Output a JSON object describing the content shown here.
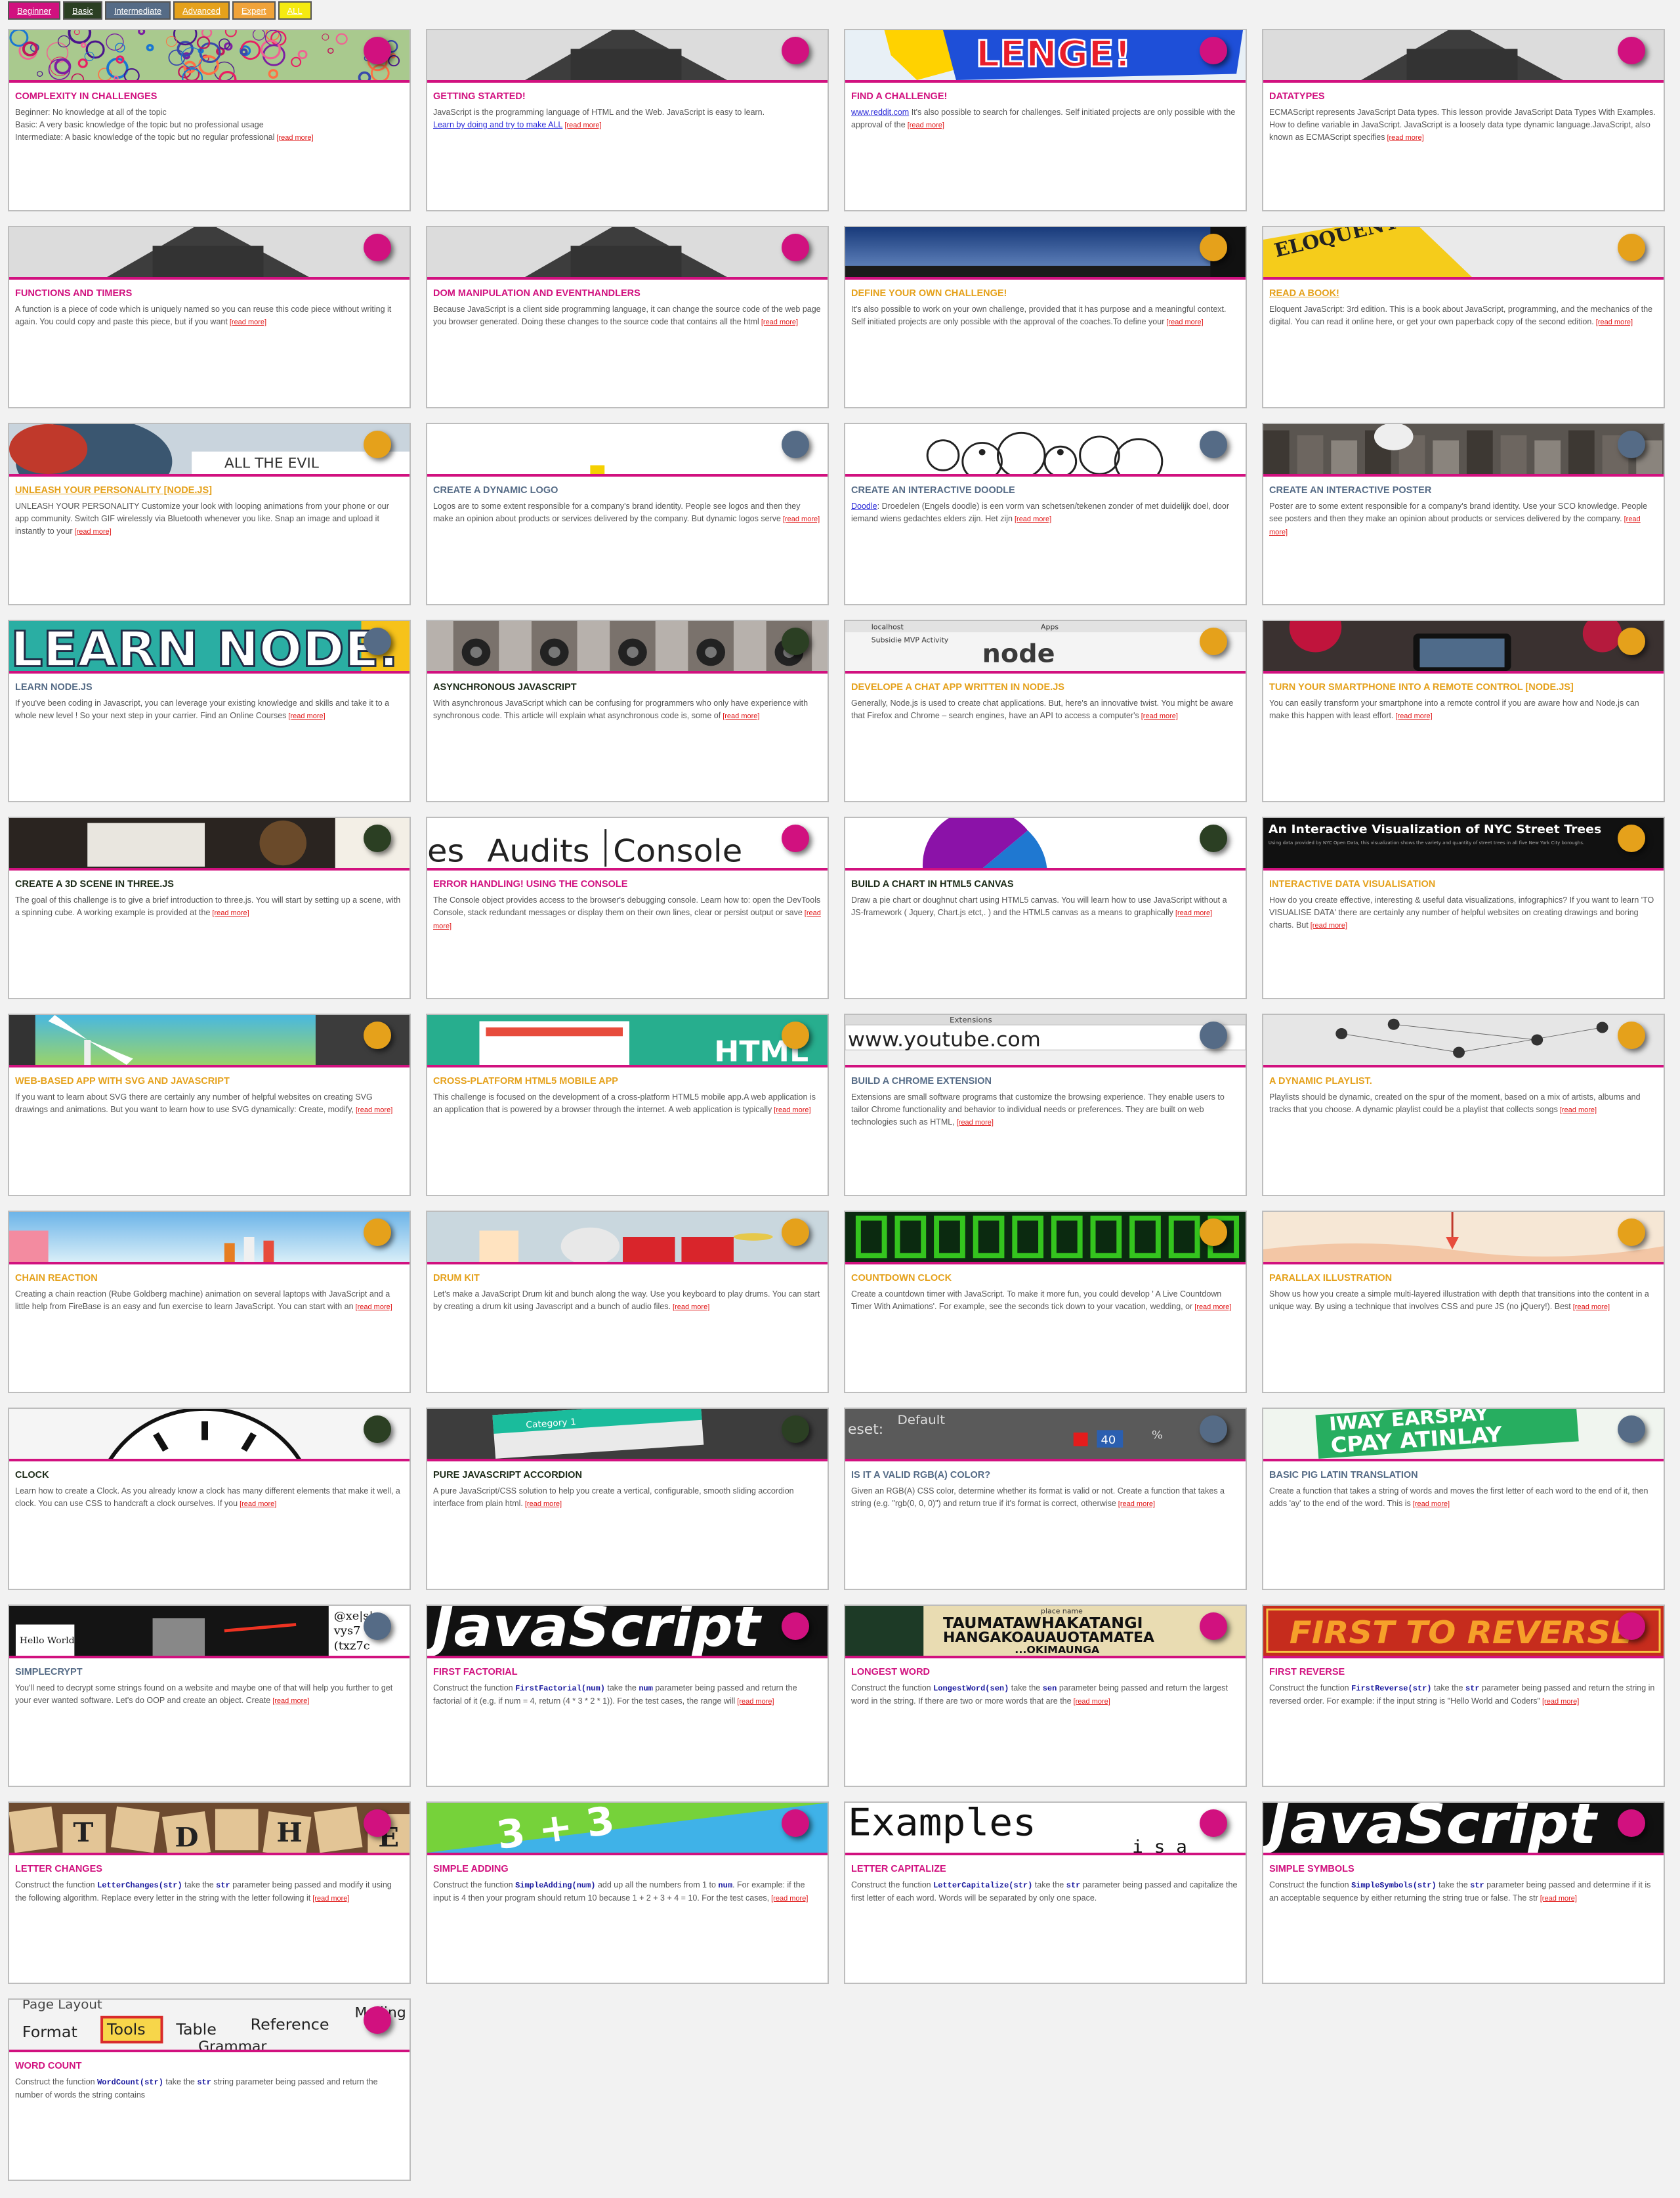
{
  "colors": {
    "beginner": "#d1117f",
    "basic": "#2b3f23",
    "intermediate": "#556b86",
    "advanced": "#e5a11b",
    "expert": "#f0a33a",
    "all": "#f5ea10"
  },
  "filters": [
    {
      "key": "beginner",
      "label": "Beginner"
    },
    {
      "key": "basic",
      "label": "Basic"
    },
    {
      "key": "intermediate",
      "label": "Intermediate"
    },
    {
      "key": "advanced",
      "label": "Advanced"
    },
    {
      "key": "expert",
      "label": "Expert"
    },
    {
      "key": "all",
      "label": "ALL"
    }
  ],
  "read_more": "[read more]",
  "cards": [
    {
      "title": "COMPLEXITY IN CHALLENGES",
      "level": "beginner",
      "img": "circles",
      "lines": [
        "Beginner: No knowledge at all of the topic",
        "Basic: A very basic knowledge of the topic but no professional usage",
        "Intermediate: A basic knowledge of the topic but no regular professional"
      ]
    },
    {
      "title": "GETTING STARTED!",
      "level": "beginner",
      "img": "gradcap",
      "text": "JavaScript is the programming language of HTML and the Web. JavaScript is easy to learn.",
      "link": "Learn by doing and try to make ALL"
    },
    {
      "title": "FIND A CHALLENGE!",
      "level": "beginner",
      "img": "comic",
      "link": "www.reddit.com",
      "text": " It's also possible to search for challenges. Self initiated projects are only possible with the approval of the"
    },
    {
      "title": "DATATYPES",
      "level": "beginner",
      "img": "gradcap",
      "text": "ECMAScript represents JavaScript Data types. This lesson provide JavaScript Data Types With Examples. How to define variable in JavaScript. JavaScript is a loosely data type dynamic language.JavaScript, also known as ECMAScript specifies"
    },
    {
      "title": "FUNCTIONS AND TIMERS",
      "level": "beginner",
      "img": "gradcap",
      "text": "A function is a piece of code which is uniquely named so you can reuse this code piece without writing it again. You could copy and paste this piece, but if you want"
    },
    {
      "title": "DOM MANIPULATION AND EVENTHANDLERS",
      "level": "beginner",
      "img": "gradcap",
      "text": "Because JavaScript is a client side programming language, it can change the source code of the web page you browser generated. Doing these changes to the source code that contains all the html"
    },
    {
      "title": "DEFINE YOUR OWN CHALLENGE!",
      "level": "advanced",
      "img": "sky",
      "text": "It's also possible to work on your own challenge, provided that it has purpose and a meaningful context. Self initiated projects are only possible with the approval of the coaches.To define your"
    },
    {
      "title": "READ A BOOK!",
      "level": "advanced",
      "img": "book",
      "underline": true,
      "text": "Eloquent JavaScript: 3rd edition. This is a book about JavaScript, programming, and the mechanics of the digital. You can read it online here, or get your own paperback copy of the second edition."
    },
    {
      "title": "UNLEASH YOUR PERSONALITY [NODE.JS]",
      "level": "advanced",
      "img": "person",
      "underline": true,
      "text": "UNLEASH YOUR PERSONALITY Customize your look with looping animations from your phone or our app community. Switch GIF wirelessly via Bluetooth whenever you like. Snap an image and upload it instantly to your"
    },
    {
      "title": "CREATE A DYNAMIC LOGO",
      "level": "intermediate",
      "img": "blank",
      "text": "Logos are to some extent responsible for a company's brand identity. People see logos and then they make an opinion about products or services delivered by the company. But dynamic logos serve"
    },
    {
      "title": "CREATE AN INTERACTIVE DOODLE",
      "level": "intermediate",
      "img": "doodle",
      "link": "Doodle",
      "text": ": Droedelen (Engels doodle) is een vorm van schetsen/tekenen zonder of met duidelijk doel, door iemand wiens gedachtes elders zijn. Het zijn"
    },
    {
      "title": "CREATE AN INTERACTIVE POSTER",
      "level": "intermediate",
      "img": "street",
      "text": "Poster are to some extent responsible for a company's brand identity. Use your SCO knowledge. People see posters and then they make an opinion about products or services delivered by the company."
    },
    {
      "title": "LEARN NODE.JS",
      "level": "intermediate",
      "img": "learnnode",
      "text": "If you've been coding in Javascript, you can leverage your existing knowledge and skills and take it to a whole new level ! So your next step in your carrier. Find an Online Courses"
    },
    {
      "title": "ASYNCHRONOUS JAVASCRIPT",
      "level": "basic",
      "img": "phones",
      "text": "With asynchronous JavaScript which can be confusing for programmers who only have experience with synchronous code. This article will explain what asynchronous code is, some of"
    },
    {
      "title": "DEVELOPE A CHAT APP WRITTEN IN NODE.JS",
      "level": "advanced",
      "img": "browser",
      "text": "Generally, Node.js is used to create chat applications. But, here's an innovative twist. You might be aware that Firefox and Chrome – search engines, have an API to access a computer's"
    },
    {
      "title": "TURN YOUR SMARTPHONE INTO A REMOTE CONTROL [NODE.JS]",
      "level": "advanced",
      "img": "phone",
      "text": "You can easily transform your smartphone into a remote control if you are aware how and Node.js can make this happen with least effort."
    },
    {
      "title": "CREATE A 3D SCENE IN THREE.JS",
      "level": "basic",
      "img": "threejs",
      "text": "The goal of this challenge is to give a brief introduction to three.js. You will start by setting up a scene, with a spinning cube. A working example is provided at the"
    },
    {
      "title": "ERROR HANDLING! USING THE CONSOLE",
      "level": "beginner",
      "img": "console",
      "text": "The Console object provides access to the browser's debugging console. Learn how to: open the DevTools Console, stack redundant messages or display them on their own lines, clear or persist output or save"
    },
    {
      "title": "BUILD A CHART IN HTML5 CANVAS",
      "level": "basic",
      "img": "pie",
      "text": "Draw a pie chart or doughnut chart using HTML5 canvas. You will learn how to use JavaScript without a JS-framework ( Jquery, Chart.js etct,. ) and the HTML5 canvas as a means to graphically"
    },
    {
      "title": "INTERACTIVE DATA VISUALISATION",
      "level": "advanced",
      "img": "trees",
      "text": "How do you create effective, interesting & useful data visualizations, infographics? If you want to learn 'TO VISUALISE DATA' there are certainly any number of helpful websites on creating drawings and boring charts. But"
    },
    {
      "title": "WEB-BASED APP WITH SVG AND JAVASCRIPT",
      "level": "advanced",
      "img": "windmill",
      "text": "If you want to learn about SVG there are certainly any number of helpful websites on creating SVG drawings and animations. But you want to learn how to use SVG dynamically: Create, modify,"
    },
    {
      "title": "CROSS-PLATFORM HTML5 MOBILE APP",
      "level": "advanced",
      "img": "html",
      "text": "This challenge is focused on the development of a cross-platform HTML5 mobile app.A web application is an application that is powered by a browser through the internet. A web application is typically"
    },
    {
      "title": "BUILD A CHROME EXTENSION",
      "level": "intermediate",
      "img": "youtube",
      "text": "Extensions are small software programs that customize the browsing experience. They enable users to tailor Chrome functionality and behavior to individual needs or preferences. They are built on web technologies such as HTML,"
    },
    {
      "title": "A DYNAMIC PLAYLIST.",
      "level": "advanced",
      "img": "network",
      "text": "Playlists should be dynamic, created on the spur of the moment, based on a mix of artists, albums and tracks that you choose. A dynamic playlist could be a playlist that collects songs"
    },
    {
      "title": "CHAIN REACTION",
      "level": "advanced",
      "img": "chain",
      "text": "Creating a chain reaction (Rube Goldberg machine) animation on several laptops with JavaScript and a little help from FireBase is an easy and fun exercise to learn JavaScript. You can start with an"
    },
    {
      "title": "DRUM KIT",
      "level": "advanced",
      "img": "drums",
      "text": "Let's make a JavaScript Drum kit and bunch along the way. Use you keyboard to play drums. You can start by creating a drum kit using Javascript and a bunch of audio files."
    },
    {
      "title": "COUNTDOWN CLOCK",
      "level": "advanced",
      "img": "digital",
      "text": "Create a countdown timer with JavaScript. To make it more fun, you could develop ' A Live Countdown Timer With Animations'. For example, see the seconds tick down to your vacation, wedding, or"
    },
    {
      "title": "PARALLAX ILLUSTRATION",
      "level": "advanced",
      "img": "parallax",
      "text": "Show us how you create a simple multi-layered illustration with depth that transitions into the content in a unique way. By using a technique that involves CSS and pure JS (no jQuery!). Best"
    },
    {
      "title": "CLOCK",
      "level": "basic",
      "img": "clock",
      "text": "Learn how to create a Clock. As you already know a clock has many different elements that make it well, a clock. You can use CSS to handcraft a clock ourselves. If you"
    },
    {
      "title": "PURE JAVASCRIPT ACCORDION",
      "level": "basic",
      "img": "accordion",
      "text": "A pure JavaScript/CSS solution to help you create a vertical, configurable, smooth sliding accordion interface from plain html."
    },
    {
      "title": "IS IT A VALID RGB(A) COLOR?",
      "level": "intermediate",
      "img": "rgb",
      "text": "Given an RGB(A) CSS color, determine whether its format is valid or not. Create a function that takes a string (e.g. \"rgb(0, 0, 0)\") and return true if it's format is correct, otherwise"
    },
    {
      "title": "BASIC PIG LATIN TRANSLATION",
      "level": "intermediate",
      "img": "piglatin",
      "text": "Create a function that takes a string of words and moves the first letter of each word to the end of it, then adds 'ay' to the end of the word. This is"
    },
    {
      "title": "SIMPLECRYPT",
      "level": "intermediate",
      "img": "crypt",
      "text": "You'll need to decrypt some strings found on a website and maybe one of that will help you further to get your ever wanted software. Let's do OOP and create an object. Create"
    },
    {
      "title": "FIRST FACTORIAL",
      "level": "beginner",
      "img": "jsword",
      "pre": "Construct the function ",
      "code": "FirstFactorial(num)",
      "mid": " take the ",
      "code2": "num",
      "text": " parameter being passed and return the factorial of it (e.g. if num = 4, return (4 * 3 * 2 * 1)). For the test cases, the range will"
    },
    {
      "title": "LONGEST WORD",
      "level": "beginner",
      "img": "longword",
      "pre": "Construct the function ",
      "code": "LongestWord(sen)",
      "mid": " take the ",
      "code2": "sen",
      "text": " parameter being passed and return the largest word in the string. If there are two or more words that are the"
    },
    {
      "title": "FIRST REVERSE",
      "level": "beginner",
      "img": "reverse",
      "pre": "Construct the function ",
      "code": "FirstReverse(str)",
      "mid": " take the ",
      "code2": "str",
      "text": " parameter being passed and return the string in reversed order. For example: if the input string is \"Hello World and Coders\""
    },
    {
      "title": "LETTER CHANGES",
      "level": "beginner",
      "img": "tiles",
      "pre": "Construct the function ",
      "code": "LetterChanges(str)",
      "mid": " take the ",
      "code2": "str",
      "text": " parameter being passed and modify it using the following algorithm. Replace every letter in the string with the letter following it"
    },
    {
      "title": "SIMPLE ADDING",
      "level": "beginner",
      "img": "adding",
      "pre": "Construct the function ",
      "code": "SimpleAdding(num)",
      "mid": " add up all the numbers from 1 to ",
      "code2": "num",
      "text": ". For example: if the input is 4 then your program should return 10 because 1 + 2 + 3 + 4 = 10. For the test cases,"
    },
    {
      "title": "LETTER CAPITALIZE",
      "level": "beginner",
      "img": "examples",
      "pre": "Construct the function ",
      "code": "LetterCapitalize(str)",
      "mid": " take the ",
      "code2": "str",
      "text": " parameter being passed and capitalize the first letter of each word. Words will be separated by only one space.",
      "nomore": true
    },
    {
      "title": "SIMPLE SYMBOLS",
      "level": "beginner",
      "img": "jsword",
      "pre": "Construct the function ",
      "code": "SimpleSymbols(str)",
      "mid": " take the ",
      "code2": "str",
      "text": " parameter being passed and determine if it is an acceptable sequence by either returning the string true or false. The str"
    },
    {
      "title": "WORD COUNT",
      "level": "beginner",
      "img": "menu",
      "pre": "Construct the function ",
      "code": "WordCount(str)",
      "mid": " take the ",
      "code2": "str",
      "text": " string parameter being passed and return the number of words the string contains",
      "nomore": true
    }
  ],
  "art": {
    "comic": "LENGE!",
    "book": "ELOQUENT SCRIPT",
    "person": "ALL THE EVIL",
    "learnnode": "LEARN NODE.",
    "browser_url": "localhost",
    "browser_tab1": "Apps",
    "browser_tab2": "Subsidie MVP Activity",
    "node": "node",
    "console1": "es",
    "console2": "Audits",
    "console3": "Console",
    "trees_title": "An Interactive Visualization of NYC Street Trees",
    "trees_sub": "Using data provided by NYC Open Data, this visualization shows the variety and quantity of street trees in all five New York City boroughs.",
    "html": "HTML",
    "youtube": "www.youtube.com",
    "extensions": "Extensions",
    "category": "Category 1",
    "rgb_label": "eset:",
    "rgb_default": "Default",
    "rgb_value": "40",
    "rgb_pct": "%",
    "pig1": "IWAY EARSPAY",
    "pig2": "CPAY ATINLAY",
    "crypt_code": "@xe|s|",
    "crypt_code2": "vys7",
    "crypt_code3": "(txz7c",
    "crypt_hello": "Hello World",
    "js": "JavaScript",
    "longword1": "TAUMATAWHAKATANGI",
    "longword2": "HANGAKOAUAUOTAMATEA",
    "longword3": "...OKIMAUNGA",
    "longword0": "place name",
    "reverse": "FIRST TO REVERSE",
    "tiles": "TDHE",
    "adding": "3 + 3",
    "examples": "Examples",
    "examples_sub": "i s a",
    "menu_format": "Format",
    "menu_tools": "Tools",
    "menu_table": "Table",
    "menu_reference": "Reference",
    "menu_mailing": "Mailing",
    "menu_page": "Page Layout",
    "menu_grammar": "Grammar"
  }
}
